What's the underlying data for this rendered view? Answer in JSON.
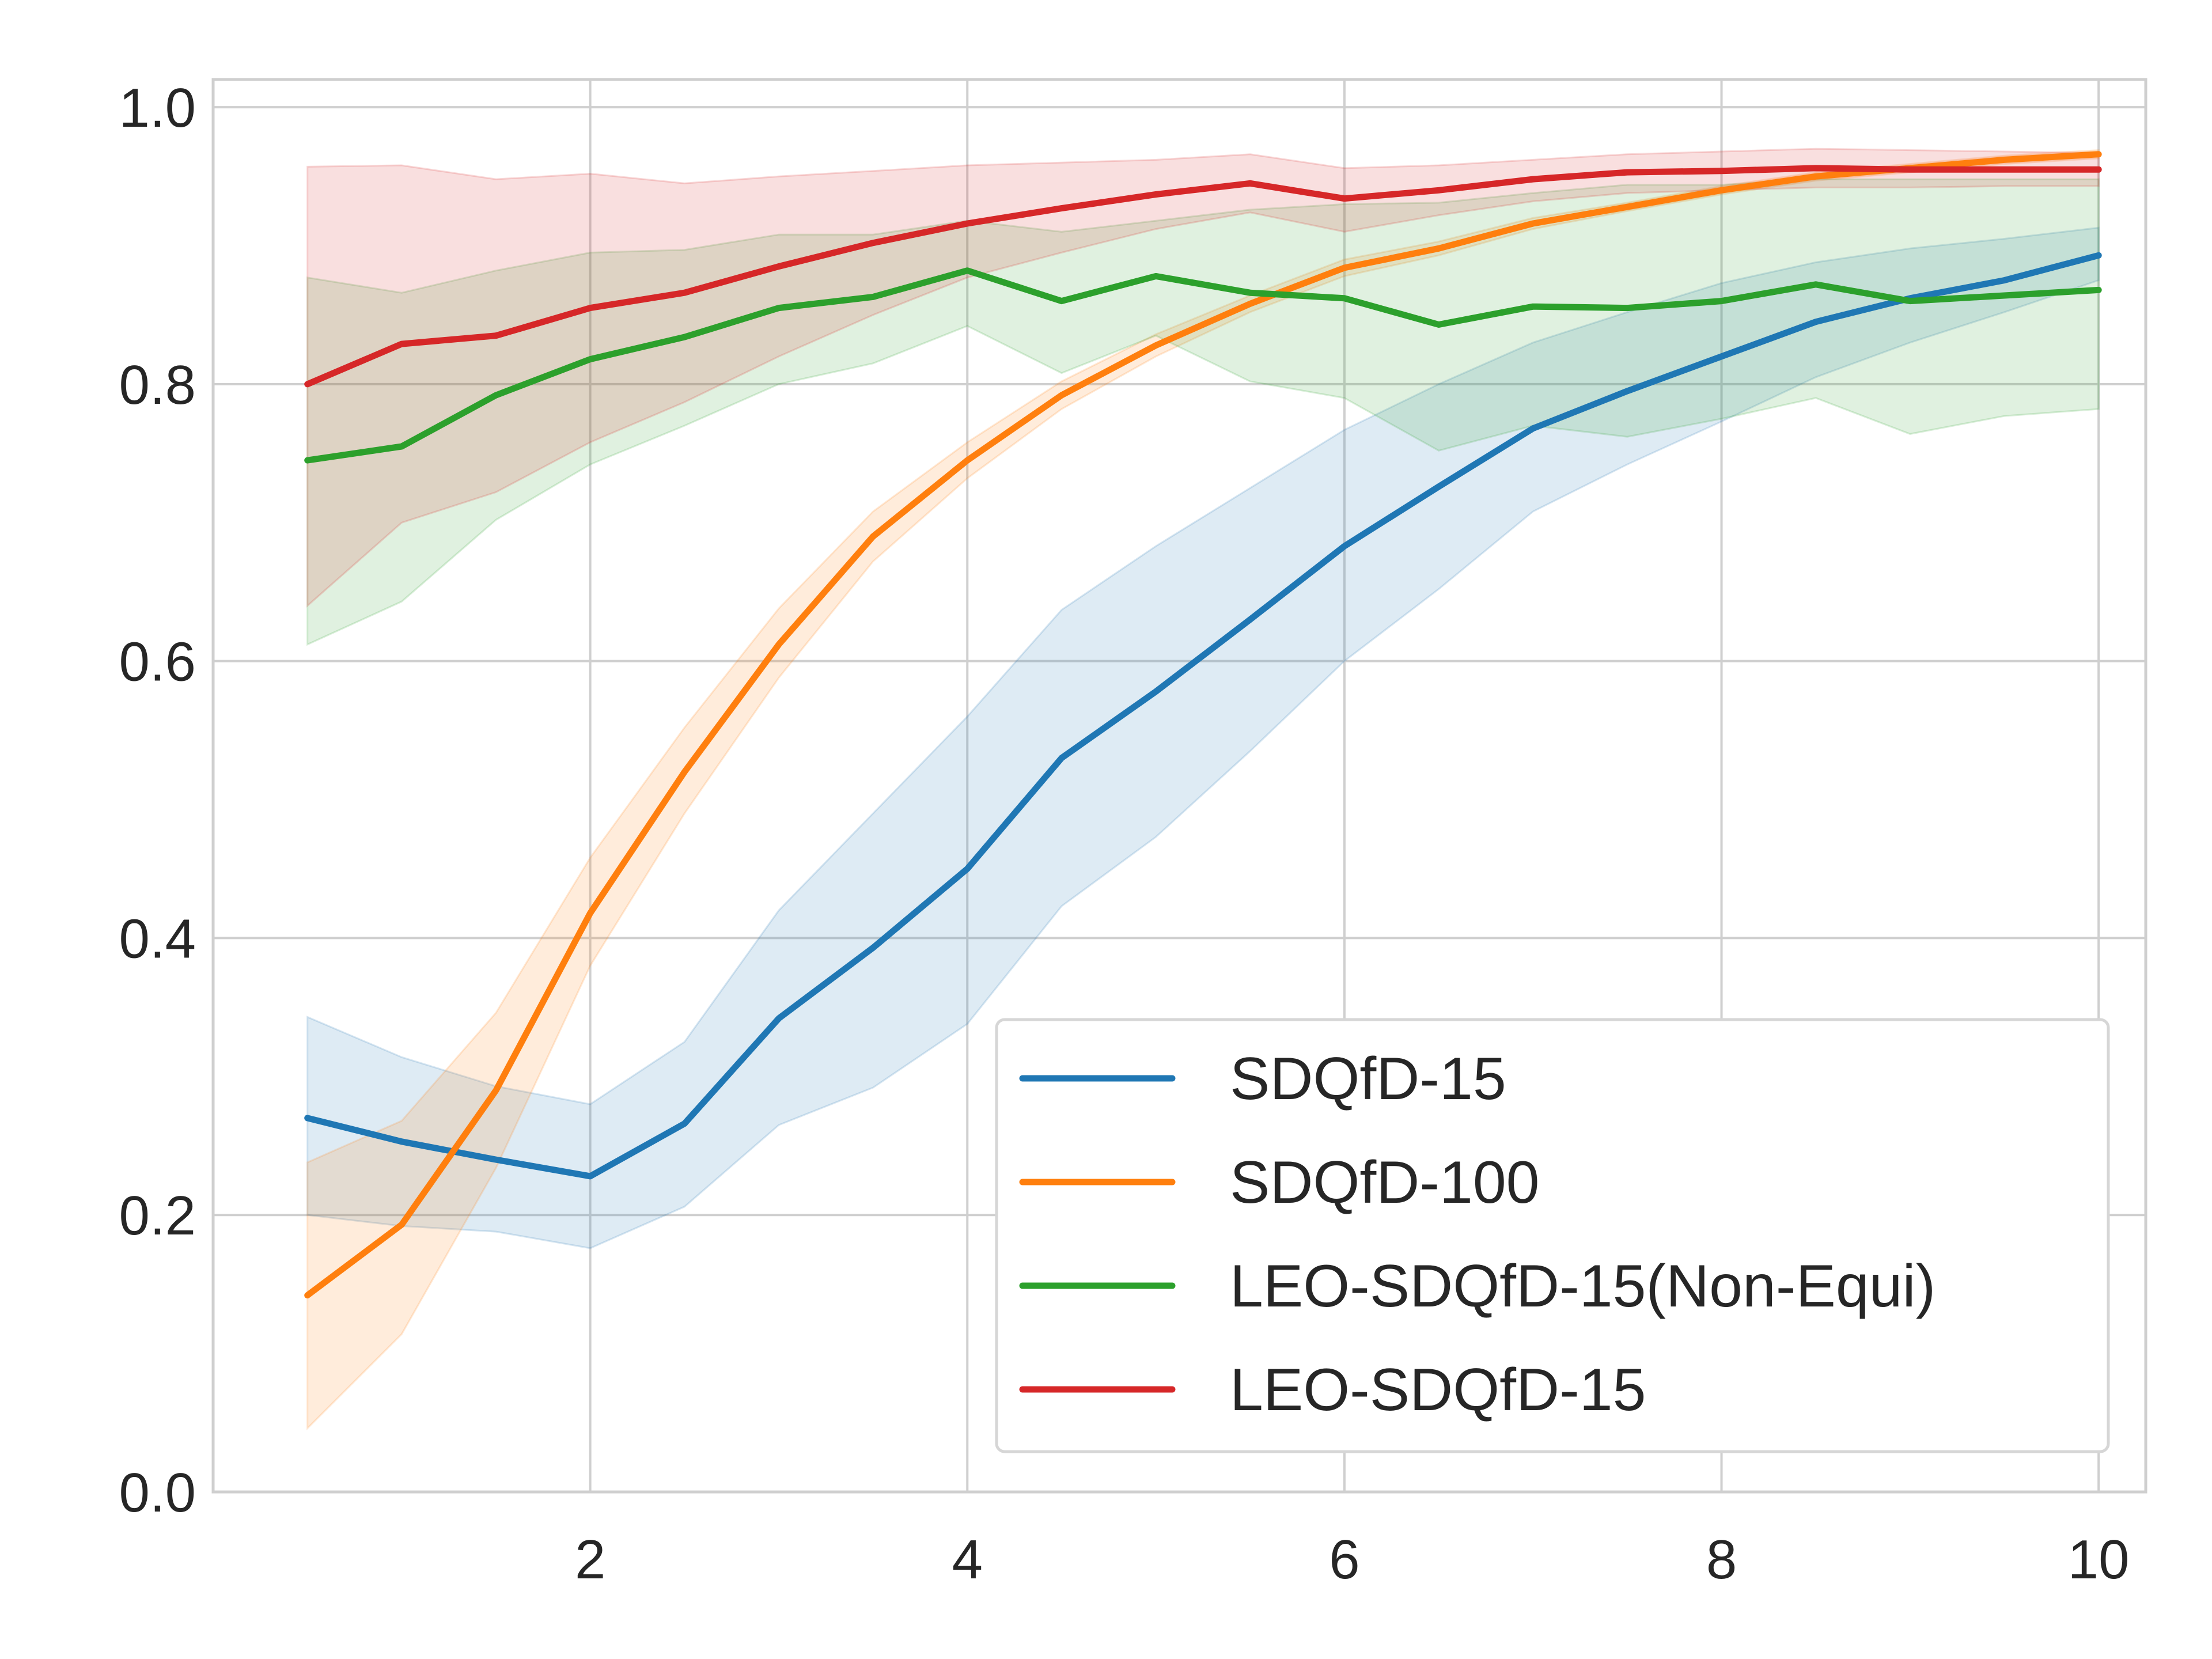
{
  "chart_data": {
    "type": "line",
    "title": "",
    "xlabel": "",
    "ylabel": "",
    "xlim": [
      0.0,
      10.25
    ],
    "ylim": [
      0.0,
      1.02
    ],
    "xticks": [
      2,
      4,
      6,
      8,
      10
    ],
    "xtick_labels": [
      "2",
      "4",
      "6",
      "8",
      "10"
    ],
    "yticks": [
      0.0,
      0.2,
      0.4,
      0.6,
      0.8,
      1.0
    ],
    "ytick_labels": [
      "0.0",
      "0.2",
      "0.4",
      "0.6",
      "0.8",
      "1.0"
    ],
    "grid": true,
    "legend_position": "lower-right",
    "x": [
      0.5,
      1.0,
      1.5,
      2.0,
      2.5,
      3.0,
      3.5,
      4.0,
      4.5,
      5.0,
      5.5,
      6.0,
      6.5,
      7.0,
      7.5,
      8.0,
      8.5,
      9.0,
      9.5,
      10.0
    ],
    "series": [
      {
        "name": "SDQfD-15",
        "color": "#1f77b4",
        "values": [
          0.27,
          0.253,
          0.24,
          0.228,
          0.266,
          0.342,
          0.393,
          0.45,
          0.53,
          0.578,
          0.63,
          0.683,
          0.726,
          0.768,
          0.795,
          0.82,
          0.845,
          0.862,
          0.875,
          0.893
        ],
        "lower": [
          0.2,
          0.192,
          0.188,
          0.176,
          0.206,
          0.265,
          0.292,
          0.338,
          0.423,
          0.473,
          0.535,
          0.6,
          0.652,
          0.708,
          0.742,
          0.773,
          0.805,
          0.83,
          0.852,
          0.875
        ],
        "upper": [
          0.343,
          0.314,
          0.293,
          0.28,
          0.325,
          0.42,
          0.49,
          0.56,
          0.637,
          0.683,
          0.725,
          0.767,
          0.8,
          0.83,
          0.852,
          0.873,
          0.888,
          0.898,
          0.905,
          0.913
        ]
      },
      {
        "name": "SDQfD-100",
        "color": "#ff7f0e",
        "values": [
          0.142,
          0.193,
          0.29,
          0.418,
          0.52,
          0.612,
          0.69,
          0.745,
          0.792,
          0.828,
          0.858,
          0.884,
          0.898,
          0.916,
          0.928,
          0.94,
          0.95,
          0.956,
          0.962,
          0.966
        ],
        "lower": [
          0.046,
          0.114,
          0.234,
          0.38,
          0.49,
          0.588,
          0.672,
          0.732,
          0.782,
          0.82,
          0.852,
          0.878,
          0.893,
          0.912,
          0.925,
          0.937,
          0.947,
          0.953,
          0.959,
          0.963
        ],
        "upper": [
          0.238,
          0.268,
          0.346,
          0.458,
          0.552,
          0.638,
          0.708,
          0.758,
          0.802,
          0.836,
          0.864,
          0.89,
          0.903,
          0.92,
          0.931,
          0.943,
          0.953,
          0.959,
          0.965,
          0.969
        ]
      },
      {
        "name": "LEO-SDQfD-15(Non-Equi)",
        "color": "#2ca02c",
        "values": [
          0.745,
          0.755,
          0.792,
          0.818,
          0.834,
          0.855,
          0.863,
          0.882,
          0.86,
          0.878,
          0.866,
          0.862,
          0.843,
          0.856,
          0.855,
          0.86,
          0.872,
          0.86,
          0.864,
          0.868
        ],
        "lower": [
          0.612,
          0.643,
          0.702,
          0.742,
          0.77,
          0.8,
          0.815,
          0.842,
          0.808,
          0.835,
          0.802,
          0.79,
          0.752,
          0.77,
          0.762,
          0.775,
          0.79,
          0.764,
          0.777,
          0.782
        ],
        "upper": [
          0.877,
          0.866,
          0.882,
          0.895,
          0.897,
          0.908,
          0.908,
          0.918,
          0.91,
          0.918,
          0.926,
          0.93,
          0.931,
          0.938,
          0.944,
          0.944,
          0.948,
          0.948,
          0.948,
          0.948
        ]
      },
      {
        "name": "LEO-SDQfD-15",
        "color": "#d62728",
        "values": [
          0.8,
          0.829,
          0.835,
          0.855,
          0.866,
          0.885,
          0.902,
          0.916,
          0.927,
          0.937,
          0.945,
          0.934,
          0.94,
          0.948,
          0.953,
          0.954,
          0.956,
          0.955,
          0.955,
          0.955
        ],
        "lower": [
          0.64,
          0.7,
          0.722,
          0.758,
          0.787,
          0.82,
          0.85,
          0.877,
          0.895,
          0.912,
          0.924,
          0.91,
          0.922,
          0.932,
          0.938,
          0.94,
          0.942,
          0.942,
          0.943,
          0.943
        ],
        "upper": [
          0.957,
          0.958,
          0.948,
          0.952,
          0.945,
          0.95,
          0.954,
          0.958,
          0.96,
          0.962,
          0.966,
          0.956,
          0.958,
          0.962,
          0.966,
          0.968,
          0.97,
          0.969,
          0.968,
          0.967
        ]
      }
    ]
  }
}
